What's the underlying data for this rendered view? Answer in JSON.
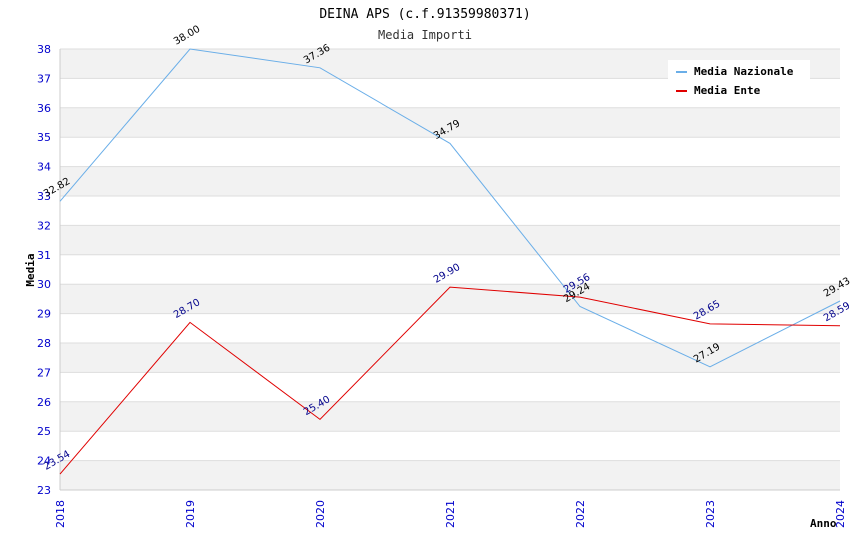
{
  "chart_data": {
    "type": "line",
    "title": "DEINA APS (c.f.91359980371)",
    "subtitle": "Media Importi",
    "xlabel": "Anno",
    "ylabel": "Media",
    "x": [
      "2018",
      "2019",
      "2020",
      "2021",
      "2022",
      "2023",
      "2024"
    ],
    "ylim": [
      23,
      38
    ],
    "yticks": [
      23,
      24,
      25,
      26,
      27,
      28,
      29,
      30,
      31,
      32,
      33,
      34,
      35,
      36,
      37,
      38
    ],
    "grid": "horizontal alternating bands",
    "legend_position": "top-right",
    "series": [
      {
        "name": "Media Nazionale",
        "color": "#6aaee8",
        "label_color": "#000000",
        "values": [
          32.82,
          38.0,
          37.36,
          34.79,
          29.24,
          27.19,
          29.43
        ],
        "labels": [
          "32.82",
          "38.00",
          "37.36",
          "34.79",
          "29.24",
          "27.19",
          "29.43"
        ]
      },
      {
        "name": "Media Ente",
        "color": "#e00000",
        "label_color": "#00008b",
        "values": [
          23.54,
          28.7,
          25.4,
          29.9,
          29.56,
          28.65,
          28.59
        ],
        "labels": [
          "23.54",
          "28.70",
          "25.40",
          "29.90",
          "29.56",
          "28.65",
          "28.59"
        ]
      }
    ]
  }
}
